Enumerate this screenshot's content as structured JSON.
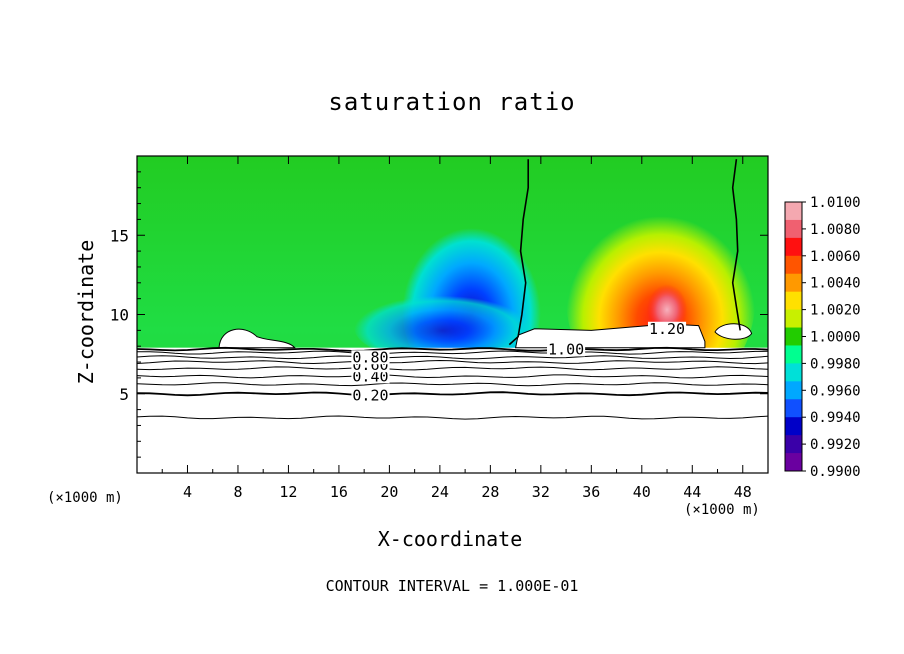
{
  "chart_data": {
    "type": "heatmap",
    "title": "saturation ratio",
    "xlabel": "X-coordinate",
    "ylabel": "Z-coordinate",
    "x_unit_label": "(×1000 m)",
    "x_unit_label_right": "(×1000 m)",
    "footer": "CONTOUR INTERVAL = 1.000E-01",
    "xlim": [
      0,
      50
    ],
    "ylim": [
      0,
      20
    ],
    "x_ticks": [
      4,
      8,
      12,
      16,
      20,
      24,
      28,
      32,
      36,
      40,
      44,
      48
    ],
    "x_tick_labels": [
      "4",
      "8",
      "12",
      "16",
      "20",
      "24",
      "28",
      "32",
      "36",
      "40",
      "44",
      "48"
    ],
    "y_ticks": [
      5,
      10,
      15
    ],
    "y_tick_labels": [
      "5",
      "10",
      "15"
    ],
    "colorbar": {
      "min": 0.99,
      "max": 1.01,
      "labels": [
        "1.0100",
        "1.0080",
        "1.0060",
        "1.0040",
        "1.0020",
        "1.0000",
        "0.9980",
        "0.9960",
        "0.9940",
        "0.9920",
        "0.9900"
      ],
      "colors": [
        "#f4a8b0",
        "#f06070",
        "#ff1010",
        "#ff5500",
        "#ff9900",
        "#ffe000",
        "#c8f000",
        "#22cc00",
        "#00ff90",
        "#00e0d8",
        "#00a8ff",
        "#1050ff",
        "#0000c8",
        "#3a00a8",
        "#6a00a0"
      ]
    },
    "field_background_value": 0.999,
    "features": [
      {
        "name": "dry-plume",
        "x": 26.5,
        "z": 10.5,
        "value": 0.991
      },
      {
        "name": "moist-plume",
        "x": 41.5,
        "z": 11,
        "value": 1.007
      },
      {
        "name": "moist-plume-core",
        "x": 42,
        "z": 10.3,
        "value": 1.01
      }
    ],
    "contour_lines_z": [
      3.5,
      5.0,
      5.6,
      6.1,
      6.6,
      7.0,
      7.3,
      7.6,
      7.8
    ],
    "contour_labels": [
      {
        "text": "0.20",
        "x": 18.5,
        "z": 4.9
      },
      {
        "text": "0.40",
        "x": 18.5,
        "z": 6.1
      },
      {
        "text": "0.60",
        "x": 18.5,
        "z": 6.8
      },
      {
        "text": "0.80",
        "x": 18.5,
        "z": 7.3
      },
      {
        "text": "1.00",
        "x": 34,
        "z": 7.8
      },
      {
        "text": "1.20",
        "x": 42,
        "z": 9.1
      }
    ],
    "boundary_contours": [
      {
        "name": "contour-1.0000-left",
        "points": [
          [
            31.0,
            19.8
          ],
          [
            31.0,
            18.0
          ],
          [
            30.6,
            16.0
          ],
          [
            30.4,
            14.0
          ],
          [
            30.8,
            12.0
          ],
          [
            30.5,
            10.0
          ],
          [
            30.2,
            8.6
          ],
          [
            29.5,
            8.1
          ]
        ]
      },
      {
        "name": "contour-1.0000-right",
        "points": [
          [
            47.5,
            19.8
          ],
          [
            47.2,
            18.0
          ],
          [
            47.5,
            16.0
          ],
          [
            47.6,
            14.0
          ],
          [
            47.2,
            12.0
          ],
          [
            47.5,
            10.5
          ],
          [
            47.8,
            9.0
          ]
        ]
      }
    ]
  }
}
